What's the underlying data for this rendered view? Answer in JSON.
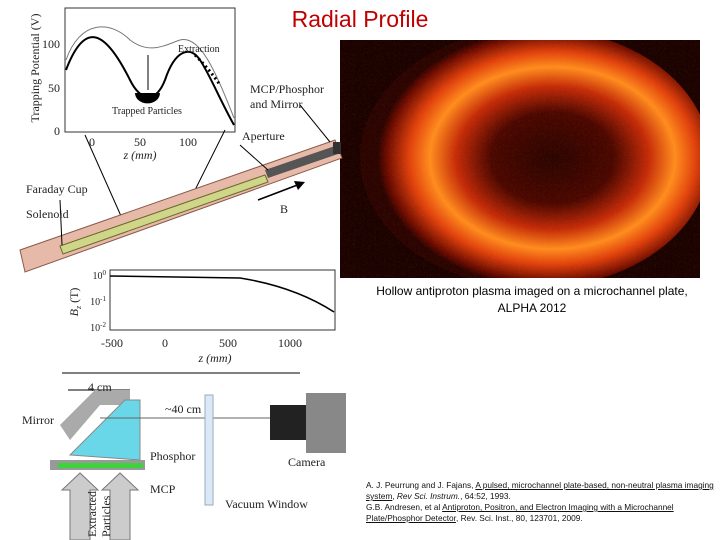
{
  "header": {
    "title": "Radial Profile"
  },
  "image_caption": {
    "lines": [
      "Hollow antiproton plasma imaged on a microchannel plate,",
      "ALPHA 2012"
    ]
  },
  "potential_plot": {
    "y_title": "Trapping Potential (V)",
    "x_title": "z (mm)",
    "y_ticks": [
      "100",
      "50",
      "0"
    ],
    "x_ticks": [
      "0",
      "50",
      "100"
    ],
    "annotations": {
      "extraction": "Extraction",
      "trapped": "Trapped Particles"
    }
  },
  "apparatus": {
    "mcp": [
      "MCP/Phosphor",
      "and Mirror"
    ],
    "aperture": "Aperture",
    "faraday": "Faraday Cup",
    "solenoid": "Solenoid",
    "field": "B"
  },
  "field_plot": {
    "y_title": {
      "base": "B",
      "sub": "z",
      "unit": "(T)"
    },
    "x_title": "z (mm)",
    "y_ticks": [
      {
        "base": "10",
        "exp": "0"
      },
      {
        "base": "10",
        "exp": "-1"
      },
      {
        "base": "10",
        "exp": "-2"
      }
    ],
    "x_ticks": [
      "-500",
      "0",
      "500",
      "1000"
    ]
  },
  "detector": {
    "width": "4 cm",
    "distance": "~40 cm",
    "mirror": "Mirror",
    "phosphor": "Phosphor",
    "camera": "Camera",
    "mcp": "MCP",
    "window": "Vacuum Window",
    "particles": [
      "Extracted",
      "Particles"
    ]
  },
  "references": [
    {
      "authors": "A. J. Peurrung and J. Fajans,",
      "title": "A pulsed, microchannel plate-based, non-neutral plasma imaging system",
      "journal": "Rev Sci. Instrum.",
      "details": ", 64:52, 1993."
    },
    {
      "authors": "G.B. Andresen, et al",
      "title": "Antiproton, Positron, and Electron Imaging with a Microchannel Plate/Phosphor Detector",
      "journal": "Rev. Sci. Inst.",
      "details": ", 80, 123701, 2009."
    }
  ]
}
